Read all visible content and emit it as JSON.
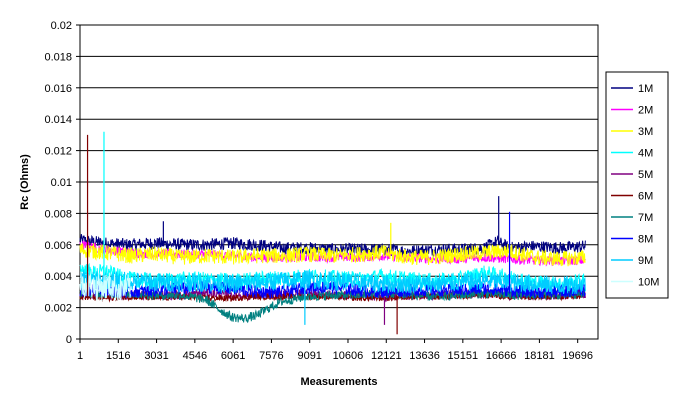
{
  "chart_data": {
    "type": "line",
    "title": "",
    "xlabel": "Measurements",
    "ylabel": "Rc (Ohms)",
    "ylim": [
      0,
      0.02
    ],
    "xlim": [
      1,
      20500
    ],
    "y_ticks": [
      "0",
      "0.002",
      "0.004",
      "0.006",
      "0.008",
      "0.01",
      "0.012",
      "0.014",
      "0.016",
      "0.018",
      "0.02"
    ],
    "x_ticks": [
      "1",
      "1516",
      "3031",
      "4546",
      "6061",
      "7576",
      "9091",
      "10606",
      "12121",
      "13636",
      "15151",
      "16666",
      "18181",
      "19696"
    ],
    "grid": "horizontal",
    "legend_position": "right",
    "series": [
      {
        "name": "1M",
        "color": "#000080",
        "x": [
          1,
          1000,
          2000,
          3000,
          4000,
          5000,
          6000,
          7000,
          8000,
          9000,
          10000,
          11000,
          12000,
          13000,
          14000,
          15000,
          16000,
          16500,
          17000,
          18000,
          19000,
          20000
        ],
        "values": [
          0.0063,
          0.0061,
          0.006,
          0.0061,
          0.006,
          0.006,
          0.0061,
          0.006,
          0.0058,
          0.0058,
          0.0057,
          0.0057,
          0.0057,
          0.0056,
          0.0057,
          0.0057,
          0.0058,
          0.0062,
          0.0058,
          0.0059,
          0.0058,
          0.0059
        ]
      },
      {
        "name": "2M",
        "color": "#FF00FF",
        "x": [
          1,
          1000,
          2000,
          3000,
          4000,
          5000,
          6000,
          7000,
          8000,
          9000,
          10000,
          11000,
          12000,
          13000,
          14000,
          15000,
          16000,
          17000,
          18000,
          19000,
          20000
        ],
        "values": [
          0.006,
          0.0057,
          0.0055,
          0.0054,
          0.0054,
          0.0054,
          0.0053,
          0.0052,
          0.0052,
          0.0052,
          0.0052,
          0.0052,
          0.0053,
          0.0052,
          0.0051,
          0.0051,
          0.0052,
          0.0051,
          0.005,
          0.005,
          0.005
        ]
      },
      {
        "name": "3M",
        "color": "#FFFF00",
        "x": [
          1,
          1000,
          2000,
          3000,
          4000,
          5000,
          6000,
          7000,
          8000,
          9000,
          10000,
          11000,
          12000,
          13000,
          14000,
          15000,
          16000,
          17000,
          18000,
          19000,
          20000
        ],
        "values": [
          0.0057,
          0.0055,
          0.0053,
          0.0054,
          0.0052,
          0.0053,
          0.0052,
          0.0053,
          0.0053,
          0.0054,
          0.0053,
          0.0054,
          0.0055,
          0.0052,
          0.0052,
          0.0054,
          0.0055,
          0.0056,
          0.0052,
          0.0051,
          0.0052
        ]
      },
      {
        "name": "4M",
        "color": "#00FFFF",
        "x": [
          1,
          500,
          1000,
          1500,
          2000,
          3000,
          4000,
          5000,
          6000,
          7000,
          8000,
          9000,
          10000,
          11000,
          12000,
          13000,
          14000,
          15000,
          16000,
          17000,
          18000,
          19000,
          20000
        ],
        "values": [
          0.0045,
          0.0042,
          0.0043,
          0.004,
          0.0038,
          0.0037,
          0.0038,
          0.0038,
          0.0037,
          0.0038,
          0.0039,
          0.004,
          0.0039,
          0.0038,
          0.004,
          0.0038,
          0.0037,
          0.0038,
          0.0042,
          0.0039,
          0.0036,
          0.0035,
          0.0037
        ]
      },
      {
        "name": "5M",
        "color": "#800080",
        "x": [
          1,
          1000,
          2000,
          3000,
          4000,
          5000,
          6000,
          7000,
          8000,
          9000,
          10000,
          11000,
          12000,
          13000,
          14000,
          15000,
          16000,
          17000,
          18000,
          19000,
          20000
        ],
        "values": [
          0.0029,
          0.0028,
          0.0028,
          0.0028,
          0.0028,
          0.0029,
          0.0028,
          0.0028,
          0.0028,
          0.0029,
          0.0028,
          0.0028,
          0.0027,
          0.0028,
          0.0028,
          0.0029,
          0.0029,
          0.0028,
          0.0028,
          0.0028,
          0.0029
        ]
      },
      {
        "name": "6M",
        "color": "#800000",
        "x": [
          1,
          1000,
          2000,
          3000,
          4000,
          5000,
          6000,
          7000,
          8000,
          9000,
          10000,
          11000,
          12000,
          13000,
          14000,
          15000,
          16000,
          17000,
          18000,
          19000,
          20000
        ],
        "values": [
          0.0027,
          0.0026,
          0.0027,
          0.0026,
          0.0027,
          0.0026,
          0.0026,
          0.0027,
          0.0027,
          0.0027,
          0.0027,
          0.0026,
          0.0026,
          0.0027,
          0.0027,
          0.0027,
          0.0028,
          0.0027,
          0.0027,
          0.0027,
          0.0028
        ]
      },
      {
        "name": "7M",
        "color": "#008080",
        "x": [
          1,
          1000,
          2000,
          3000,
          4000,
          5000,
          5500,
          6000,
          6500,
          7000,
          7500,
          8000,
          9000,
          10000,
          11000,
          12000,
          13000,
          14000,
          15000,
          16000,
          17000,
          18000,
          19000,
          20000
        ],
        "values": [
          0.003,
          0.0029,
          0.0029,
          0.0028,
          0.0028,
          0.0025,
          0.0019,
          0.0014,
          0.0013,
          0.0015,
          0.002,
          0.0024,
          0.0027,
          0.0028,
          0.0028,
          0.0029,
          0.0028,
          0.0027,
          0.0028,
          0.0029,
          0.0028,
          0.0028,
          0.0028,
          0.0029
        ]
      },
      {
        "name": "8M",
        "color": "#0000FF",
        "x": [
          1,
          1000,
          2000,
          3000,
          4000,
          5000,
          6000,
          7000,
          8000,
          9000,
          10000,
          11000,
          12000,
          13000,
          14000,
          15000,
          16000,
          17000,
          18000,
          19000,
          20000
        ],
        "values": [
          0.0031,
          0.0031,
          0.003,
          0.0031,
          0.0032,
          0.0033,
          0.0032,
          0.003,
          0.003,
          0.0033,
          0.0033,
          0.0031,
          0.003,
          0.0031,
          0.0031,
          0.0031,
          0.0032,
          0.0031,
          0.003,
          0.003,
          0.0031
        ]
      },
      {
        "name": "9M",
        "color": "#00CCFF",
        "x": [
          1,
          1000,
          2000,
          3000,
          4000,
          5000,
          6000,
          7000,
          8000,
          9000,
          10000,
          11000,
          12000,
          13000,
          14000,
          15000,
          16000,
          17000,
          18000,
          19000,
          20000
        ],
        "values": [
          0.0038,
          0.0037,
          0.0037,
          0.0036,
          0.0036,
          0.0036,
          0.0035,
          0.0036,
          0.0037,
          0.0038,
          0.0037,
          0.0036,
          0.0035,
          0.0035,
          0.0035,
          0.0036,
          0.0037,
          0.0036,
          0.0035,
          0.0034,
          0.0035
        ]
      },
      {
        "name": "10M",
        "color": "#CCFFFF",
        "x": [
          1,
          400,
          800,
          1200,
          1600,
          2000
        ],
        "values": [
          0.0036,
          0.0034,
          0.0033,
          0.0034,
          0.0032,
          0.0033
        ]
      }
    ],
    "spikes": [
      {
        "series": "6M",
        "x": 300,
        "value": 0.013
      },
      {
        "series": "4M",
        "x": 950,
        "value": 0.0132
      },
      {
        "series": "1M",
        "x": 3300,
        "value": 0.0075
      },
      {
        "series": "1M",
        "x": 16570,
        "value": 0.0091
      },
      {
        "series": "8M",
        "x": 17000,
        "value": 0.0081
      },
      {
        "series": "5M",
        "x": 12050,
        "value": 0.0009
      },
      {
        "series": "6M",
        "x": 12550,
        "value": 0.0003
      },
      {
        "series": "9M",
        "x": 8900,
        "value": 0.0009
      },
      {
        "series": "3M",
        "x": 12300,
        "value": 0.0074
      }
    ]
  }
}
